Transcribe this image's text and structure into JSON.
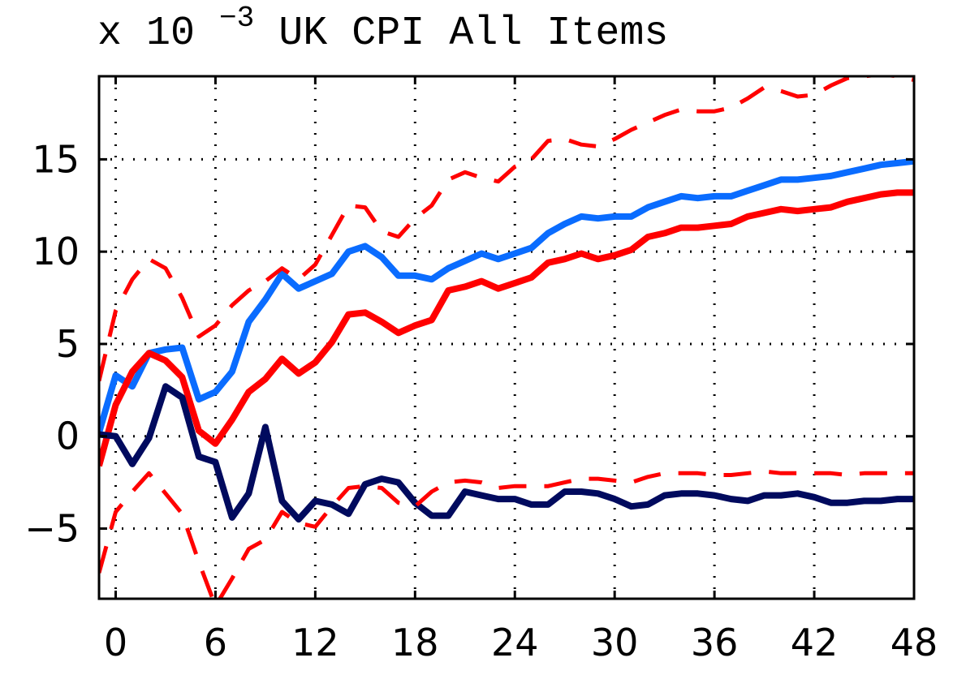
{
  "chart_data": {
    "type": "line",
    "title": "UK CPI All Items",
    "scale_prefix": "x 10",
    "scale_exponent": "−3",
    "xlabel": "",
    "ylabel": "",
    "xlim": [
      -1,
      48
    ],
    "ylim": [
      -8.8,
      19.5
    ],
    "grid": true,
    "x_ticks": [
      0,
      6,
      12,
      18,
      24,
      30,
      36,
      42,
      48
    ],
    "x_tick_labels": [
      "0",
      "6",
      "12",
      "18",
      "24",
      "30",
      "36",
      "42",
      "48"
    ],
    "y_ticks": [
      15,
      10,
      5,
      0,
      -5
    ],
    "y_tick_labels": [
      "15",
      "10",
      "5",
      "0",
      "−5"
    ],
    "x": [
      -1,
      0,
      1,
      2,
      3,
      4,
      5,
      6,
      7,
      8,
      9,
      10,
      11,
      12,
      13,
      14,
      15,
      16,
      17,
      18,
      19,
      20,
      21,
      22,
      23,
      24,
      25,
      26,
      27,
      28,
      29,
      30,
      31,
      32,
      33,
      34,
      35,
      36,
      37,
      38,
      39,
      40,
      41,
      42,
      43,
      44,
      45,
      46,
      47,
      48
    ],
    "series": [
      {
        "color": "#0a6cff",
        "style": "solid",
        "values": [
          0.2,
          3.3,
          2.7,
          4.5,
          4.7,
          4.8,
          2.0,
          2.4,
          3.5,
          6.2,
          7.4,
          8.8,
          8.0,
          8.4,
          8.8,
          10.0,
          10.3,
          9.7,
          8.7,
          8.7,
          8.5,
          9.1,
          9.5,
          9.9,
          9.6,
          9.9,
          10.2,
          11.0,
          11.5,
          11.9,
          11.8,
          11.9,
          11.9,
          12.4,
          12.7,
          13.0,
          12.9,
          13.0,
          13.0,
          13.3,
          13.6,
          13.9,
          13.9,
          14.0,
          14.1,
          14.3,
          14.5,
          14.7,
          14.8,
          14.9
        ]
      },
      {
        "color": "#ff0000",
        "style": "solid",
        "values": [
          -1.6,
          1.7,
          3.5,
          4.5,
          4.1,
          3.2,
          0.3,
          -0.4,
          0.9,
          2.4,
          3.1,
          4.2,
          3.4,
          4.0,
          5.1,
          6.6,
          6.7,
          6.2,
          5.6,
          6.0,
          6.3,
          7.9,
          8.1,
          8.4,
          8.0,
          8.3,
          8.6,
          9.4,
          9.6,
          9.9,
          9.6,
          9.8,
          10.1,
          10.8,
          11.0,
          11.3,
          11.3,
          11.4,
          11.5,
          11.9,
          12.1,
          12.3,
          12.2,
          12.3,
          12.4,
          12.7,
          12.9,
          13.1,
          13.2,
          13.2
        ]
      },
      {
        "color": "#000a5e",
        "style": "solid",
        "values": [
          0.1,
          0.0,
          -1.5,
          -0.1,
          2.7,
          2.1,
          -1.1,
          -1.4,
          -4.4,
          -3.1,
          0.5,
          -3.5,
          -4.5,
          -3.5,
          -3.7,
          -4.2,
          -2.6,
          -2.3,
          -2.5,
          -3.6,
          -4.3,
          -4.3,
          -3.0,
          -3.2,
          -3.4,
          -3.4,
          -3.7,
          -3.7,
          -3.0,
          -3.0,
          -3.1,
          -3.4,
          -3.8,
          -3.7,
          -3.2,
          -3.1,
          -3.1,
          -3.2,
          -3.4,
          -3.5,
          -3.2,
          -3.2,
          -3.1,
          -3.3,
          -3.6,
          -3.6,
          -3.5,
          -3.5,
          -3.4,
          -3.4
        ]
      },
      {
        "color": "#ff0000",
        "style": "dashed",
        "values": [
          3.0,
          6.8,
          8.5,
          9.6,
          9.1,
          7.5,
          5.4,
          6.0,
          7.1,
          7.9,
          8.4,
          9.1,
          8.5,
          9.3,
          10.9,
          12.5,
          12.4,
          11.1,
          10.8,
          11.8,
          12.5,
          13.9,
          14.3,
          14.0,
          13.8,
          14.6,
          15.0,
          16.0,
          16.1,
          15.8,
          15.7,
          16.1,
          16.6,
          17.0,
          17.4,
          17.7,
          17.6,
          17.6,
          17.8,
          18.3,
          18.9,
          18.7,
          18.4,
          18.5,
          19.0,
          19.4,
          19.5,
          19.6,
          19.5,
          19.3
        ]
      },
      {
        "color": "#ff0000",
        "style": "dashed",
        "values": [
          -7.4,
          -4.1,
          -3.0,
          -2.0,
          -3.1,
          -4.2,
          -6.8,
          -9.2,
          -7.7,
          -6.1,
          -5.6,
          -4.1,
          -4.7,
          -4.9,
          -3.8,
          -2.8,
          -2.7,
          -2.8,
          -3.6,
          -3.8,
          -3.0,
          -2.5,
          -2.4,
          -2.5,
          -2.8,
          -2.7,
          -2.7,
          -2.7,
          -2.5,
          -2.3,
          -2.3,
          -2.4,
          -2.5,
          -2.2,
          -2.0,
          -2.0,
          -2.0,
          -2.1,
          -2.1,
          -2.0,
          -1.9,
          -2.0,
          -2.0,
          -2.0,
          -2.0,
          -2.1,
          -2.0,
          -2.0,
          -2.0,
          -2.0
        ]
      }
    ]
  }
}
